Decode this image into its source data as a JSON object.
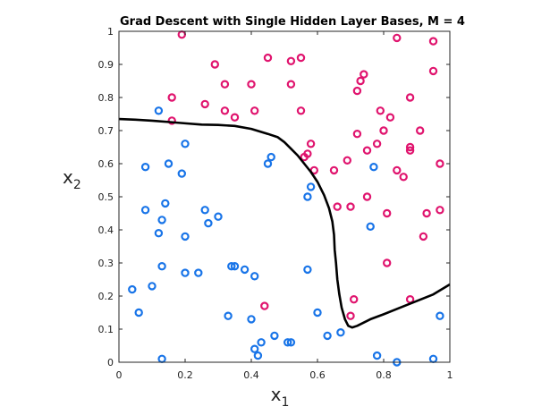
{
  "chart_data": {
    "type": "scatter",
    "title": "Grad Descent with Single Hidden Layer Bases, M = 4",
    "xlabel": {
      "base": "x",
      "sub": "1"
    },
    "ylabel": {
      "base": "x",
      "sub": "2"
    },
    "xlim": [
      0,
      1
    ],
    "ylim": [
      0,
      1
    ],
    "xticks": [
      0,
      0.2,
      0.4,
      0.6,
      0.8,
      1
    ],
    "xtick_labels": [
      "0",
      "0.2",
      "0.4",
      "0.6",
      "0.8",
      "1"
    ],
    "yticks": [
      0,
      0.1,
      0.2,
      0.3,
      0.4,
      0.5,
      0.6,
      0.7,
      0.8,
      0.9,
      1
    ],
    "ytick_labels": [
      "0",
      "0.1",
      "0.2",
      "0.3",
      "0.4",
      "0.5",
      "0.6",
      "0.7",
      "0.8",
      "0.9",
      "1"
    ],
    "grid": false,
    "series": [
      {
        "color": "#e0146e",
        "marker": "circle-open",
        "points": [
          [
            0.19,
            0.99
          ],
          [
            0.45,
            0.92
          ],
          [
            0.52,
            0.91
          ],
          [
            0.55,
            0.92
          ],
          [
            0.84,
            0.98
          ],
          [
            0.95,
            0.97
          ],
          [
            0.29,
            0.9
          ],
          [
            0.32,
            0.84
          ],
          [
            0.4,
            0.84
          ],
          [
            0.52,
            0.84
          ],
          [
            0.74,
            0.87
          ],
          [
            0.73,
            0.85
          ],
          [
            0.72,
            0.82
          ],
          [
            0.95,
            0.88
          ],
          [
            0.16,
            0.8
          ],
          [
            0.26,
            0.78
          ],
          [
            0.32,
            0.76
          ],
          [
            0.35,
            0.74
          ],
          [
            0.41,
            0.76
          ],
          [
            0.55,
            0.76
          ],
          [
            0.79,
            0.76
          ],
          [
            0.88,
            0.8
          ],
          [
            0.16,
            0.73
          ],
          [
            0.82,
            0.74
          ],
          [
            0.72,
            0.69
          ],
          [
            0.8,
            0.7
          ],
          [
            0.91,
            0.7
          ],
          [
            0.58,
            0.66
          ],
          [
            0.57,
            0.63
          ],
          [
            0.56,
            0.62
          ],
          [
            0.78,
            0.66
          ],
          [
            0.75,
            0.64
          ],
          [
            0.88,
            0.65
          ],
          [
            0.88,
            0.64
          ],
          [
            0.69,
            0.61
          ],
          [
            0.59,
            0.58
          ],
          [
            0.65,
            0.58
          ],
          [
            0.84,
            0.58
          ],
          [
            0.86,
            0.56
          ],
          [
            0.97,
            0.6
          ],
          [
            0.75,
            0.5
          ],
          [
            0.66,
            0.47
          ],
          [
            0.7,
            0.47
          ],
          [
            0.81,
            0.45
          ],
          [
            0.93,
            0.45
          ],
          [
            0.97,
            0.46
          ],
          [
            0.92,
            0.38
          ],
          [
            0.81,
            0.3
          ],
          [
            0.71,
            0.19
          ],
          [
            0.88,
            0.19
          ],
          [
            0.7,
            0.14
          ],
          [
            0.44,
            0.17
          ]
        ]
      },
      {
        "color": "#1874e8",
        "marker": "circle-open",
        "points": [
          [
            0.12,
            0.76
          ],
          [
            0.2,
            0.66
          ],
          [
            0.08,
            0.59
          ],
          [
            0.15,
            0.6
          ],
          [
            0.19,
            0.57
          ],
          [
            0.46,
            0.62
          ],
          [
            0.45,
            0.6
          ],
          [
            0.58,
            0.53
          ],
          [
            0.57,
            0.5
          ],
          [
            0.77,
            0.59
          ],
          [
            0.08,
            0.46
          ],
          [
            0.14,
            0.48
          ],
          [
            0.26,
            0.46
          ],
          [
            0.3,
            0.44
          ],
          [
            0.13,
            0.43
          ],
          [
            0.27,
            0.42
          ],
          [
            0.12,
            0.39
          ],
          [
            0.2,
            0.38
          ],
          [
            0.76,
            0.41
          ],
          [
            0.34,
            0.29
          ],
          [
            0.35,
            0.29
          ],
          [
            0.38,
            0.28
          ],
          [
            0.13,
            0.29
          ],
          [
            0.2,
            0.27
          ],
          [
            0.24,
            0.27
          ],
          [
            0.41,
            0.26
          ],
          [
            0.57,
            0.28
          ],
          [
            0.04,
            0.22
          ],
          [
            0.1,
            0.23
          ],
          [
            0.06,
            0.15
          ],
          [
            0.33,
            0.14
          ],
          [
            0.4,
            0.13
          ],
          [
            0.6,
            0.15
          ],
          [
            0.47,
            0.08
          ],
          [
            0.51,
            0.06
          ],
          [
            0.52,
            0.06
          ],
          [
            0.63,
            0.08
          ],
          [
            0.67,
            0.09
          ],
          [
            0.43,
            0.06
          ],
          [
            0.41,
            0.04
          ],
          [
            0.42,
            0.02
          ],
          [
            0.13,
            0.01
          ],
          [
            0.78,
            0.02
          ],
          [
            0.84,
            0.0
          ],
          [
            0.95,
            0.01
          ],
          [
            0.97,
            0.14
          ]
        ]
      }
    ],
    "boundary": {
      "color": "#000000",
      "points": [
        [
          0,
          0.735
        ],
        [
          0.05,
          0.733
        ],
        [
          0.1,
          0.73
        ],
        [
          0.15,
          0.726
        ],
        [
          0.2,
          0.722
        ],
        [
          0.25,
          0.718
        ],
        [
          0.3,
          0.717
        ],
        [
          0.35,
          0.714
        ],
        [
          0.4,
          0.705
        ],
        [
          0.45,
          0.69
        ],
        [
          0.48,
          0.68
        ],
        [
          0.5,
          0.665
        ],
        [
          0.52,
          0.645
        ],
        [
          0.54,
          0.625
        ],
        [
          0.56,
          0.6
        ],
        [
          0.58,
          0.575
        ],
        [
          0.6,
          0.545
        ],
        [
          0.62,
          0.505
        ],
        [
          0.635,
          0.465
        ],
        [
          0.645,
          0.425
        ],
        [
          0.65,
          0.385
        ],
        [
          0.652,
          0.34
        ],
        [
          0.656,
          0.3
        ],
        [
          0.66,
          0.25
        ],
        [
          0.666,
          0.205
        ],
        [
          0.673,
          0.165
        ],
        [
          0.683,
          0.13
        ],
        [
          0.693,
          0.11
        ],
        [
          0.705,
          0.105
        ],
        [
          0.72,
          0.11
        ],
        [
          0.76,
          0.13
        ],
        [
          0.8,
          0.145
        ],
        [
          0.85,
          0.165
        ],
        [
          0.9,
          0.185
        ],
        [
          0.95,
          0.205
        ],
        [
          1.0,
          0.235
        ]
      ]
    }
  }
}
